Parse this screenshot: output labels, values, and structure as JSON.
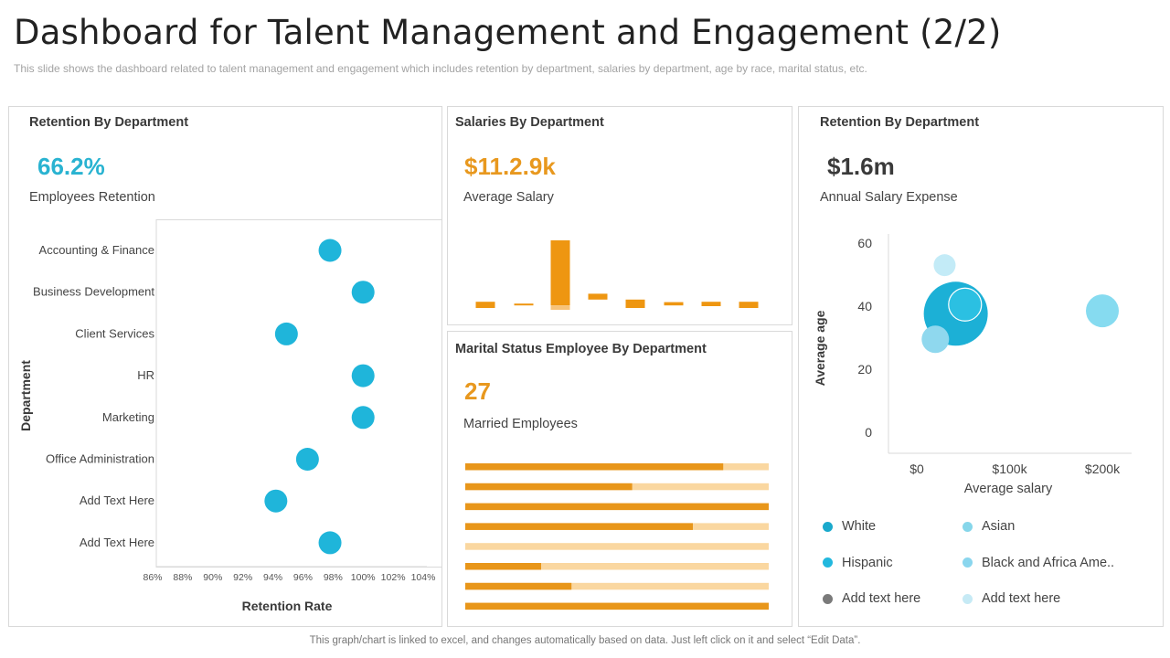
{
  "header": {
    "title": "Dashboard for Talent Management and Engagement (2/2)",
    "subtitle": "This slide shows the dashboard related to talent management and engagement which includes retention by department, salaries by department, age by race, marital status, etc."
  },
  "panels": {
    "retention": {
      "title": "Retention By Department",
      "kpi": "66.2%",
      "kpi_label": "Employees Retention",
      "kpi_color": "#29b3d1"
    },
    "salaries": {
      "title": "Salaries By Department",
      "kpi": "$11.2.9k",
      "kpi_label": "Average Salary",
      "kpi_color": "#e8981e"
    },
    "marital": {
      "title": "Marital Status Employee By Department",
      "kpi": "27",
      "kpi_label": "Married Employees",
      "kpi_color": "#e8981e"
    },
    "age": {
      "title": "Retention By Department",
      "kpi": "$1.6m",
      "kpi_label": "Annual Salary Expense",
      "kpi_color": "#3a3a3a"
    }
  },
  "footer": "This graph/chart is linked to excel, and changes automatically based on data. Just left click on it and select “Edit Data”.",
  "chart_data": [
    {
      "id": "retention_dot",
      "type": "scatter",
      "title": "Retention By Department",
      "xlabel": "Retention Rate",
      "ylabel": "Department",
      "categories": [
        "Accounting & Finance",
        "Business Development",
        "Client Services",
        "HR",
        "Marketing",
        "Office Administration",
        "Add Text Here",
        "Add Text Here"
      ],
      "values": [
        97.8,
        100,
        94.9,
        100,
        100,
        96.3,
        94.2,
        97.8
      ],
      "xlim": [
        86,
        104
      ],
      "xticks": [
        "86%",
        "88%",
        "90%",
        "92%",
        "94%",
        "96%",
        "98%",
        "100%",
        "102%",
        "104%"
      ],
      "color": "#1fb5da",
      "grid": false
    },
    {
      "id": "salaries_floating",
      "type": "bar",
      "title": "Salaries By Department",
      "note": "floating bars, relative units, no axis shown",
      "ylim": [
        0,
        100
      ],
      "series": [
        {
          "name": "main",
          "color": "#ee9611",
          "ranges": [
            [
              2.5,
              11
            ],
            [
              6,
              8.5
            ],
            [
              6,
              95
            ],
            [
              14,
              22
            ],
            [
              2.5,
              14
            ],
            [
              6,
              10.5
            ],
            [
              5,
              11
            ],
            [
              2.5,
              11
            ]
          ]
        },
        {
          "name": "light",
          "color": "#f7c37a",
          "ranges": [
            null,
            null,
            [
              0,
              6
            ],
            null,
            null,
            null,
            null,
            null
          ]
        }
      ]
    },
    {
      "id": "marital_bars",
      "type": "bar",
      "orientation": "horizontal",
      "title": "Marital Status Employee By Department",
      "values_pct": [
        85,
        55,
        100,
        75,
        0,
        25,
        35,
        100
      ],
      "fill_color": "#e8961a",
      "track_color": "#fad7a0"
    },
    {
      "id": "age_bubble",
      "type": "scatter",
      "subtype": "bubble",
      "xlabel": "Average salary",
      "ylabel": "Average age",
      "xlim": [
        0,
        230
      ],
      "ylim": [
        -7,
        63
      ],
      "xticks": [
        {
          "v": 0,
          "label": "$0"
        },
        {
          "v": 100,
          "label": "$100k"
        },
        {
          "v": 200,
          "label": "$200k"
        }
      ],
      "yticks": [
        {
          "v": 0,
          "label": "0"
        },
        {
          "v": 20,
          "label": "20"
        },
        {
          "v": 40,
          "label": "40"
        },
        {
          "v": 60,
          "label": "60"
        }
      ],
      "points": [
        {
          "name": "White",
          "x": 42,
          "y": 37.6,
          "size": 35,
          "color": "#1cb0d6"
        },
        {
          "name": "Hispanic",
          "x": 52,
          "y": 40.5,
          "size": 18,
          "color": "#2bc0e2",
          "stroke": "#ffffff"
        },
        {
          "name": "Add text here",
          "x": 30,
          "y": 53,
          "size": 12,
          "color": "#c3ebf7"
        },
        {
          "name": "Black and Africa Ame..",
          "x": 20,
          "y": 29.5,
          "size": 15,
          "color": "#8fd8ee"
        },
        {
          "name": "Asian",
          "x": 200,
          "y": 38.5,
          "size": 18,
          "color": "#86dbf0"
        }
      ],
      "legend": [
        {
          "label": "White",
          "color": "#1aa9cc"
        },
        {
          "label": "Asian",
          "color": "#86d6ea"
        },
        {
          "label": "Hispanic",
          "color": "#22b8de"
        },
        {
          "label": "Black and Africa Ame..",
          "color": "#8ad6ee"
        },
        {
          "label": "Add text here",
          "color": "#7a7a7a"
        },
        {
          "label": "Add text here",
          "color": "#c6eaf5"
        }
      ],
      "legend_position": "bottom"
    }
  ]
}
